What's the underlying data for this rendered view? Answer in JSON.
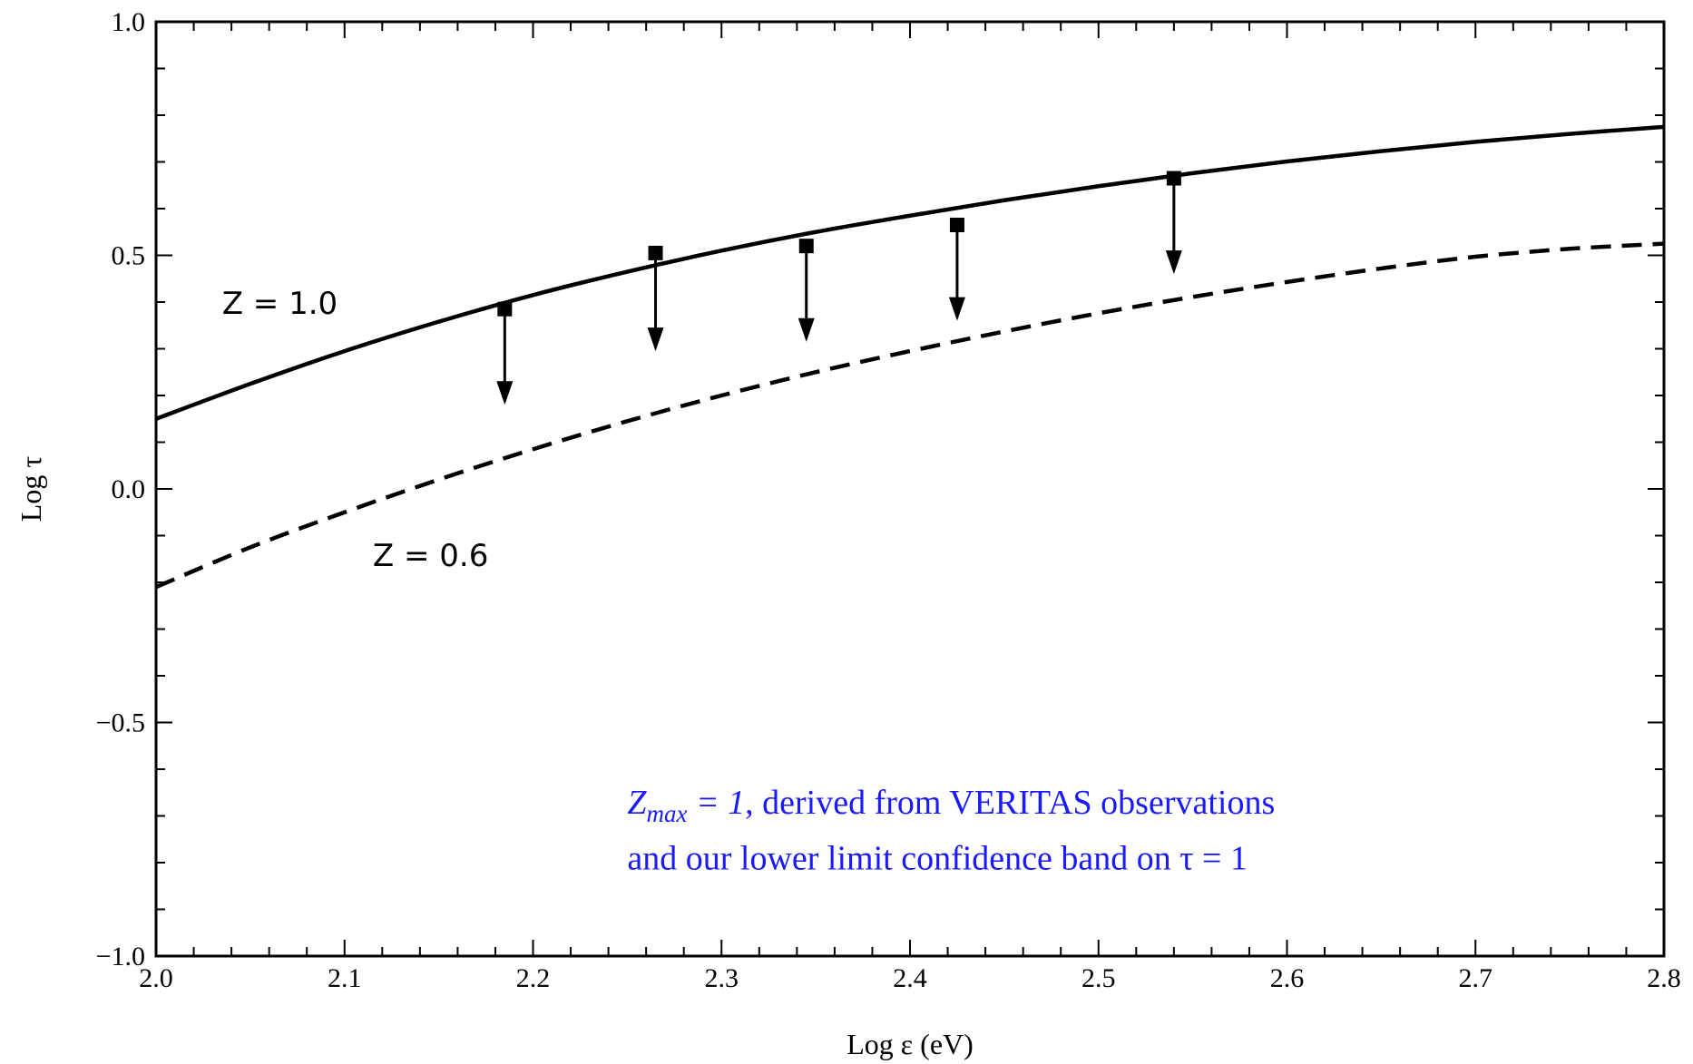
{
  "chart_data": {
    "type": "line",
    "xlabel": "Log ε (eV)",
    "ylabel": "Log τ",
    "xlim": [
      2.0,
      2.8
    ],
    "ylim": [
      -1.0,
      1.0
    ],
    "x_ticks": [
      "2.0",
      "2.1",
      "2.2",
      "2.3",
      "2.4",
      "2.5",
      "2.6",
      "2.7",
      "2.8"
    ],
    "y_ticks": [
      "−1.0",
      "−0.5",
      "0.0",
      "0.5",
      "1.0"
    ],
    "series": [
      {
        "name": "Z = 1.0",
        "style": "solid",
        "x": [
          2.0,
          2.05,
          2.1,
          2.15,
          2.2,
          2.25,
          2.3,
          2.35,
          2.4,
          2.45,
          2.5,
          2.55,
          2.6,
          2.65,
          2.7,
          2.75,
          2.8
        ],
        "y": [
          0.15,
          0.225,
          0.295,
          0.358,
          0.415,
          0.465,
          0.51,
          0.55,
          0.585,
          0.618,
          0.648,
          0.676,
          0.701,
          0.723,
          0.743,
          0.76,
          0.775
        ]
      },
      {
        "name": "Z = 0.6",
        "style": "dashed",
        "x": [
          2.0,
          2.05,
          2.1,
          2.15,
          2.2,
          2.25,
          2.3,
          2.35,
          2.4,
          2.45,
          2.5,
          2.55,
          2.6,
          2.65,
          2.7,
          2.75,
          2.8
        ],
        "y": [
          -0.21,
          -0.125,
          -0.05,
          0.02,
          0.085,
          0.145,
          0.2,
          0.25,
          0.295,
          0.337,
          0.376,
          0.411,
          0.443,
          0.472,
          0.497,
          0.514,
          0.525
        ]
      }
    ],
    "upper_limits": [
      {
        "x": 2.185,
        "y": 0.385,
        "y_to": 0.18
      },
      {
        "x": 2.265,
        "y": 0.505,
        "y_to": 0.295
      },
      {
        "x": 2.345,
        "y": 0.52,
        "y_to": 0.315
      },
      {
        "x": 2.425,
        "y": 0.565,
        "y_to": 0.36
      },
      {
        "x": 2.54,
        "y": 0.665,
        "y_to": 0.46
      }
    ],
    "curve_labels": [
      {
        "text": "Z = 1.0",
        "x": 2.035,
        "y": 0.375
      },
      {
        "text": "Z = 0.6",
        "x": 2.115,
        "y": -0.165
      }
    ],
    "annotation": {
      "symbol": "Z",
      "subscript": "max",
      "value": " = 1",
      "line1_rest": ", derived from VERITAS observations",
      "line2": "and our lower limit confidence band on τ = 1",
      "x": 2.25,
      "y_line1": -0.695,
      "y_line2": -0.815
    },
    "grid": false,
    "legend": "none",
    "color": "#000000",
    "annotation_color": "#1a1aff"
  }
}
